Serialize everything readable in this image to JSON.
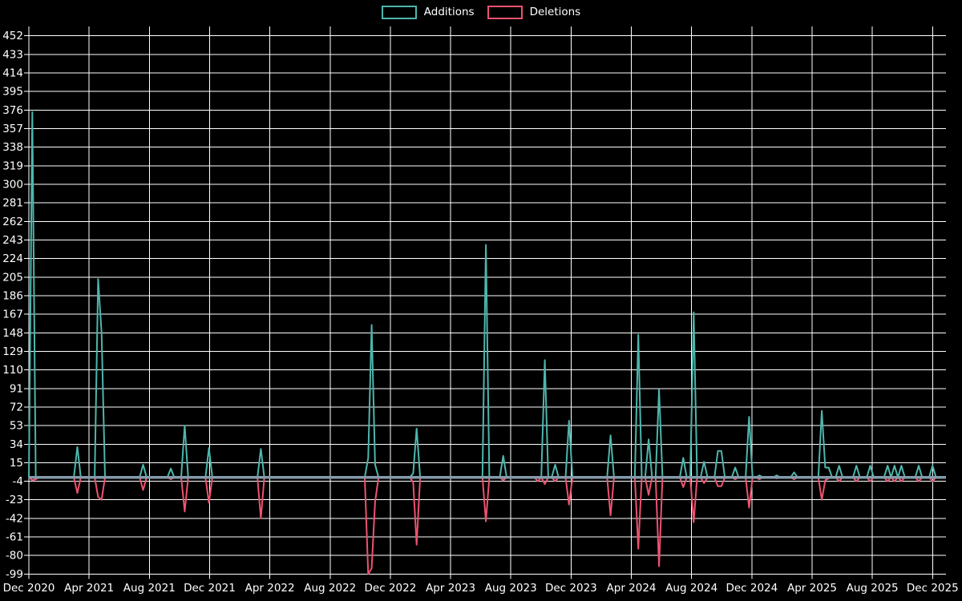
{
  "page": {
    "background": "#000000",
    "text_color": "#ffffff"
  },
  "chart_data": {
    "type": "line",
    "title": "",
    "legend": [
      {
        "label": "Additions",
        "color": "#4db6ac"
      },
      {
        "label": "Deletions",
        "color": "#ec536f"
      }
    ],
    "legend_position": "top-center",
    "grid": true,
    "grid_color": "#ffffff",
    "zero_line_color": "#849aaa",
    "y_axis": {
      "min": -99,
      "max": 452,
      "tick_step": 19,
      "ticks": [
        452,
        433,
        414,
        395,
        376,
        357,
        338,
        319,
        300,
        281,
        262,
        243,
        224,
        205,
        186,
        167,
        148,
        129,
        110,
        91,
        72,
        53,
        34,
        15,
        -4,
        -23,
        -42,
        -61,
        -80,
        -99
      ]
    },
    "x_axis": {
      "unit": "week",
      "tick_labels": [
        "Dec 2020",
        "Apr 2021",
        "Aug 2021",
        "Dec 2021",
        "Apr 2022",
        "Aug 2022",
        "Dec 2022",
        "Apr 2023",
        "Aug 2023",
        "Dec 2023",
        "Apr 2024",
        "Aug 2024",
        "Dec 2024",
        "Apr 2025",
        "Aug 2025",
        "Dec 2025"
      ]
    },
    "weeks_total": 263,
    "series_default_value": 0,
    "events_format": "[week_index, additions, deletions] — all unlisted weeks are 0 / 0",
    "events": [
      [
        1,
        374,
        -3
      ],
      [
        2,
        0,
        -2
      ],
      [
        14,
        31,
        -16
      ],
      [
        20,
        203,
        -20
      ],
      [
        21,
        148,
        -23
      ],
      [
        33,
        13,
        -13
      ],
      [
        41,
        9,
        -2
      ],
      [
        45,
        53,
        -35
      ],
      [
        52,
        30,
        -26
      ],
      [
        67,
        29,
        -42
      ],
      [
        98,
        20,
        -99
      ],
      [
        99,
        156,
        -93
      ],
      [
        100,
        13,
        -25
      ],
      [
        111,
        4,
        -5
      ],
      [
        112,
        50,
        -69
      ],
      [
        132,
        238,
        -45
      ],
      [
        137,
        22,
        -3
      ],
      [
        147,
        0,
        -4
      ],
      [
        149,
        120,
        -7
      ],
      [
        152,
        13,
        -4
      ],
      [
        156,
        58,
        -28
      ],
      [
        168,
        43,
        -39
      ],
      [
        176,
        146,
        -73
      ],
      [
        179,
        39,
        -18
      ],
      [
        182,
        90,
        -91
      ],
      [
        189,
        20,
        -10
      ],
      [
        192,
        169,
        -46
      ],
      [
        195,
        16,
        -6
      ],
      [
        199,
        27,
        -9
      ],
      [
        200,
        27,
        -9
      ],
      [
        204,
        10,
        -2
      ],
      [
        208,
        62,
        -31
      ],
      [
        211,
        2,
        -2
      ],
      [
        216,
        2,
        -1
      ],
      [
        221,
        5,
        -2
      ],
      [
        229,
        68,
        -23
      ],
      [
        230,
        10,
        -3
      ],
      [
        231,
        10,
        -1
      ],
      [
        234,
        12,
        -4
      ],
      [
        239,
        12,
        -4
      ],
      [
        243,
        12,
        -4
      ],
      [
        248,
        12,
        -4
      ],
      [
        250,
        12,
        -4
      ],
      [
        252,
        12,
        -4
      ],
      [
        257,
        12,
        -4
      ],
      [
        261,
        12,
        -4
      ]
    ]
  }
}
